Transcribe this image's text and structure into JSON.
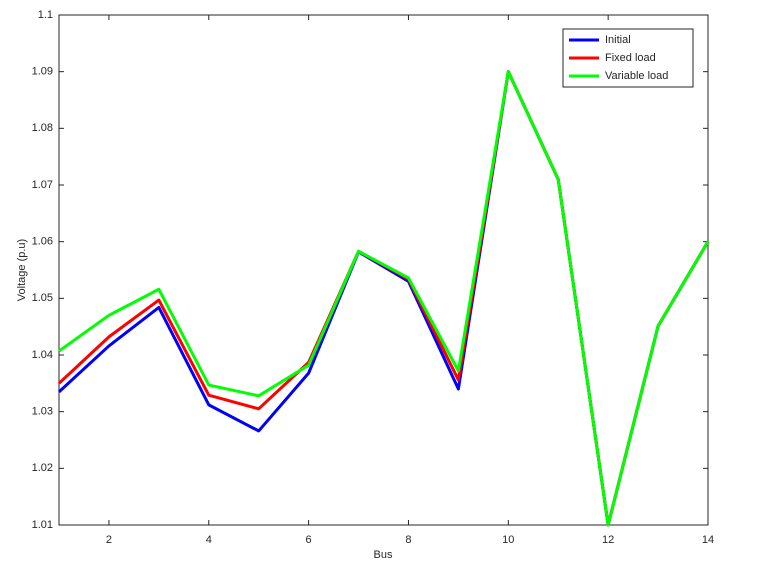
{
  "chart_data": {
    "type": "line",
    "x": [
      1,
      2,
      3,
      4,
      5,
      6,
      7,
      8,
      9,
      10,
      11,
      12,
      13,
      14
    ],
    "xlabel": "Bus",
    "ylabel": "Voltage (p.u)",
    "xlim": [
      1,
      14
    ],
    "xticks": [
      2,
      4,
      6,
      8,
      10,
      12,
      14
    ],
    "ylim": [
      1.01,
      1.1
    ],
    "yticks": [
      1.01,
      1.02,
      1.03,
      1.04,
      1.05,
      1.06,
      1.07,
      1.08,
      1.09,
      1.1
    ],
    "legend": "top-right",
    "series": [
      {
        "name": "Initial",
        "color": "#0000ff",
        "values": [
          1.0335,
          1.0416,
          1.0484,
          1.0312,
          1.0266,
          1.0368,
          1.0582,
          1.053,
          1.034,
          1.09,
          1.071,
          1.01,
          1.0451,
          1.06
        ]
      },
      {
        "name": "Fixed load",
        "color": "#ff0000",
        "values": [
          1.035,
          1.0432,
          1.0497,
          1.0329,
          1.0305,
          1.0387,
          1.0583,
          1.0534,
          1.0356,
          1.09,
          1.071,
          1.01,
          1.0451,
          1.06
        ]
      },
      {
        "name": "Variable load",
        "color": "#00ff00",
        "values": [
          1.0407,
          1.047,
          1.0516,
          1.0347,
          1.0328,
          1.0382,
          1.0583,
          1.0536,
          1.0372,
          1.09,
          1.071,
          1.01,
          1.0451,
          1.06
        ]
      }
    ]
  }
}
